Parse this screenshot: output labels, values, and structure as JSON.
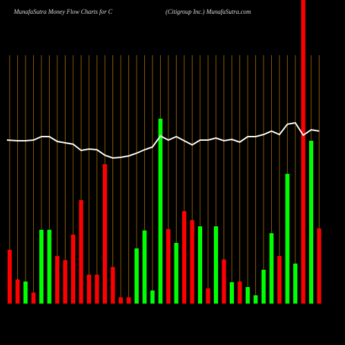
{
  "chart_data": {
    "type": "bar",
    "title": "MunafaSutra  Money Flow  Charts for C",
    "subtitle": "(Citigroup Inc.) MunafaSutra.com",
    "values": [
      78,
      35,
      32,
      16,
      107,
      107,
      69,
      63,
      100,
      150,
      42,
      42,
      202,
      53,
      9,
      9,
      80,
      106,
      19,
      268,
      108,
      88,
      134,
      121,
      112,
      22,
      112,
      64,
      31,
      32,
      24,
      12,
      49,
      102,
      69,
      188,
      58,
      440,
      236,
      109
    ],
    "colors": [
      "#ff0000",
      "#ff0000",
      "#00ff00",
      "#ff0000",
      "#00ff00",
      "#00ff00",
      "#ff0000",
      "#ff0000",
      "#ff0000",
      "#ff0000",
      "#ff0000",
      "#ff0000",
      "#ff0000",
      "#ff0000",
      "#ff0000",
      "#ff0000",
      "#00ff00",
      "#00ff00",
      "#00ff00",
      "#00ff00",
      "#ff0000",
      "#00ff00",
      "#ff0000",
      "#ff0000",
      "#00ff00",
      "#ff0000",
      "#00ff00",
      "#ff0000",
      "#00ff00",
      "#ff0000",
      "#00ff00",
      "#00ff00",
      "#00ff00",
      "#00ff00",
      "#ff0000",
      "#00ff00",
      "#00ff00",
      "#ff0000",
      "#00ff00",
      "#ff0000"
    ],
    "line_values": [
      237,
      236,
      236,
      237,
      242,
      242,
      235,
      233,
      231,
      222,
      224,
      223,
      215,
      211,
      212,
      214,
      218,
      223,
      227,
      243,
      237,
      242,
      236,
      230,
      237,
      237,
      240,
      236,
      238,
      234,
      242,
      242,
      245,
      250,
      245,
      260,
      262,
      244,
      252,
      250
    ],
    "line_color": "#ffffff",
    "grid_color": "#8b5a00"
  }
}
